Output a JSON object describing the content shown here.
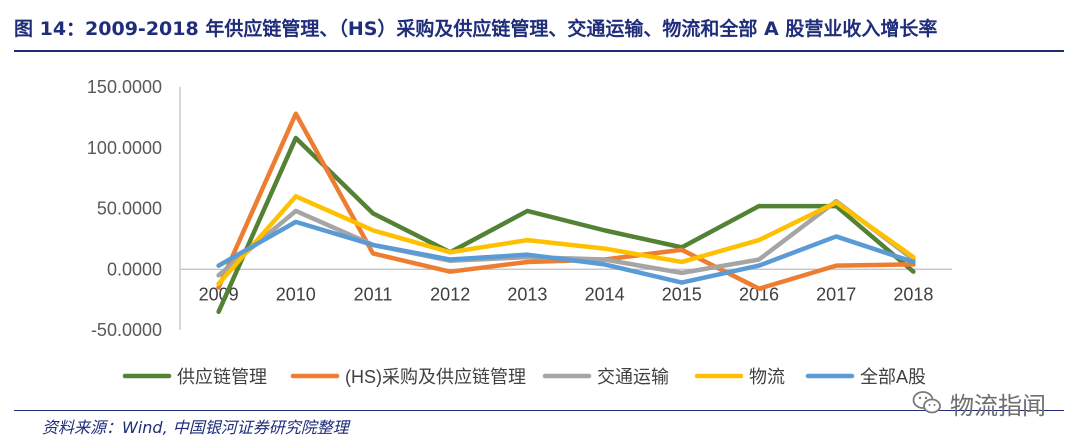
{
  "header": {
    "title": "图 14：2009-2018 年供应链管理、（HS）采购及供应链管理、交通运输、物流和全部 A 股营业收入增长率"
  },
  "footer": {
    "source": "资料来源：Wind, 中国银河证券研究院整理"
  },
  "watermark": {
    "text": "物流指闻",
    "icon": "wechat-icon"
  },
  "chart_data": {
    "type": "line",
    "categories": [
      "2009",
      "2010",
      "2011",
      "2012",
      "2013",
      "2014",
      "2015",
      "2016",
      "2017",
      "2018"
    ],
    "ylim": [
      -50,
      150
    ],
    "yticks": [
      -50,
      0,
      50,
      100,
      150
    ],
    "ytick_labels": [
      "-50.0000",
      "0.0000",
      "50.0000",
      "100.0000",
      "150.0000"
    ],
    "grid": false,
    "legend_position": "bottom",
    "series": [
      {
        "name": "供应链管理",
        "color": "#548235",
        "values": [
          -35,
          108,
          46,
          14,
          48,
          32,
          18,
          52,
          52,
          -2
        ]
      },
      {
        "name": "(HS)采购及供应链管理",
        "color": "#ed7d31",
        "values": [
          -15,
          128,
          13,
          -2,
          6,
          8,
          16,
          -16,
          3,
          4
        ]
      },
      {
        "name": "交通运输",
        "color": "#a5a5a5",
        "values": [
          -5,
          48,
          20,
          7,
          10,
          8,
          -3,
          8,
          56,
          8
        ]
      },
      {
        "name": "物流",
        "color": "#ffc000",
        "values": [
          -12,
          60,
          32,
          14,
          24,
          17,
          6,
          24,
          55,
          10
        ]
      },
      {
        "name": "全部A股",
        "color": "#5b9bd5",
        "values": [
          3,
          39,
          20,
          8,
          12,
          4,
          -11,
          3,
          27,
          6
        ]
      }
    ]
  }
}
